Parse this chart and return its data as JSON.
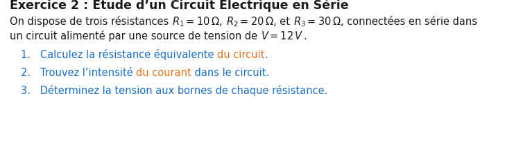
{
  "title": "Exercice 2 : Étude d’un Circuit Électrique en Série",
  "black": "#1a1a1a",
  "orange": "#e07020",
  "blue": "#1a6ebd",
  "background_color": "#ffffff",
  "title_fontsize": 12.5,
  "body_fontsize": 10.5,
  "item_fontsize": 10.5,
  "line1_segments": [
    [
      "On dispose de trois résistances ",
      "#1a1a1a",
      false
    ],
    [
      "$R_1 = 10\\,\\Omega$",
      "#1a1a1a",
      false
    ],
    [
      ", ",
      "#1a1a1a",
      false
    ],
    [
      "$R_2 = 20\\,\\Omega$",
      "#1a1a1a",
      false
    ],
    [
      ", et ",
      "#1a1a1a",
      false
    ],
    [
      "$R_3 = 30\\,\\Omega$",
      "#1a1a1a",
      false
    ],
    [
      ", connectées en série dans",
      "#1a1a1a",
      false
    ]
  ],
  "line2_segments": [
    [
      "un circuit alimenté par une source de tension de ",
      "#1a1a1a",
      false
    ],
    [
      "$V = 12\\,V$",
      "#1a1a1a",
      false
    ],
    [
      ".",
      "#1a1a1a",
      false
    ]
  ],
  "item1_segments": [
    [
      "1.   Calculez la résistance équivalente ",
      "#1a6ebd",
      false
    ],
    [
      "du circuit",
      "#e07020",
      false
    ],
    [
      ".",
      "#1a6ebd",
      false
    ]
  ],
  "item2_segments": [
    [
      "2.   Trouvez l’intensité ",
      "#1a6ebd",
      false
    ],
    [
      "du courant",
      "#e07020",
      false
    ],
    [
      " dans le circuit.",
      "#1a6ebd",
      false
    ]
  ],
  "item3_text": "3.   Déterminez la tension aux bornes de chaque résistance.",
  "item3_color": "#1a6ebd"
}
